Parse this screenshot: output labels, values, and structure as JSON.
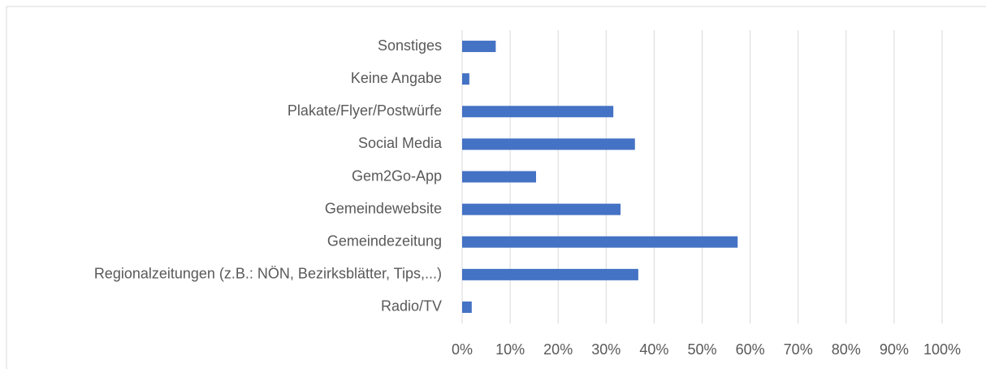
{
  "chart_data": {
    "type": "bar",
    "orientation": "horizontal",
    "categories": [
      "Sonstiges",
      "Keine Angabe",
      "Plakate/Flyer/Postwürfe",
      "Social Media",
      "Gem2Go-App",
      "Gemeindewebsite",
      "Gemeindezeitung",
      "Regionalzeitungen (z.B.: NÖN, Bezirksblätter, Tips,...)",
      "Radio/TV"
    ],
    "values": [
      7,
      1.5,
      31.5,
      36,
      15.4,
      33,
      57.4,
      36.7,
      2
    ],
    "color": "#4472c4",
    "xlim": [
      0,
      100
    ],
    "xticks": [
      {
        "value": 0,
        "label": "0%"
      },
      {
        "value": 10,
        "label": "10%"
      },
      {
        "value": 20,
        "label": "20%"
      },
      {
        "value": 30,
        "label": "30%"
      },
      {
        "value": 40,
        "label": "40%"
      },
      {
        "value": 50,
        "label": "50%"
      },
      {
        "value": 60,
        "label": "60%"
      },
      {
        "value": 70,
        "label": "70%"
      },
      {
        "value": 80,
        "label": "80%"
      },
      {
        "value": 90,
        "label": "90%"
      },
      {
        "value": 100,
        "label": "100%"
      }
    ],
    "grid": true
  }
}
